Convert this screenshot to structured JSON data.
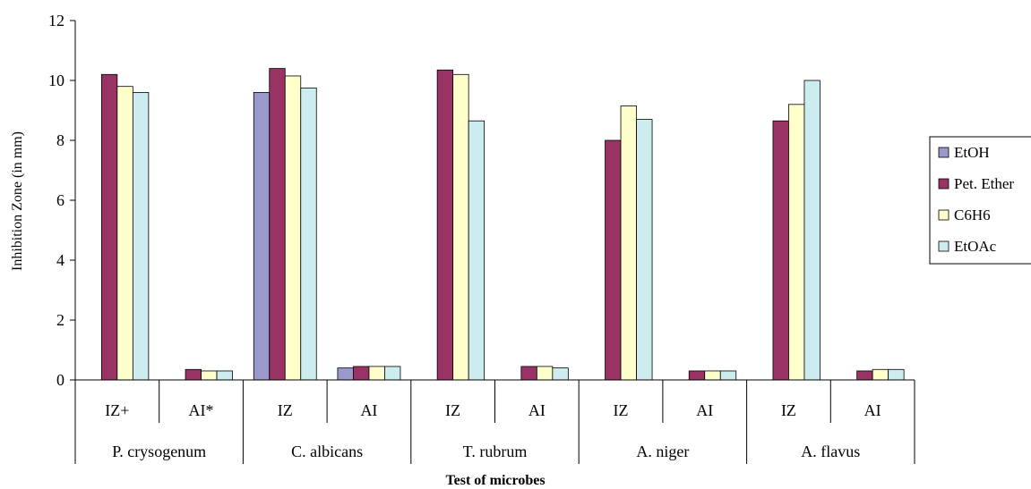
{
  "chart_data": {
    "type": "bar",
    "title": "",
    "xlabel": "Test of microbes",
    "ylabel": "Inhibition Zone (in mm)",
    "ylim": [
      0,
      12
    ],
    "yticks": [
      "0",
      "2",
      "4",
      "6",
      "8",
      "10",
      "12"
    ],
    "grid": false,
    "legend_position": "right",
    "groups": [
      "P. crysogenum",
      "C. albicans",
      "T. rubrum",
      "A. niger",
      "A. flavus"
    ],
    "categories": [
      "IZ+",
      "AI*",
      "IZ",
      "AI",
      "IZ",
      "AI",
      "IZ",
      "AI",
      "IZ",
      "AI"
    ],
    "series": [
      {
        "name": "EtOH",
        "color": "#9999CC",
        "values": [
          0,
          0,
          9.6,
          0.4,
          0,
          0,
          0,
          0,
          0,
          0
        ]
      },
      {
        "name": "Pet. Ether",
        "color": "#993366",
        "values": [
          10.2,
          0.35,
          10.4,
          0.45,
          10.35,
          0.45,
          8.0,
          0.3,
          8.65,
          0.3
        ]
      },
      {
        "name": "C6H6",
        "color": "#FFFFCC",
        "values": [
          9.8,
          0.3,
          10.15,
          0.45,
          10.2,
          0.45,
          9.15,
          0.3,
          9.2,
          0.35
        ]
      },
      {
        "name": "EtOAc",
        "color": "#CCECF0",
        "values": [
          9.6,
          0.3,
          9.75,
          0.45,
          8.65,
          0.4,
          8.7,
          0.3,
          10.0,
          0.35
        ]
      }
    ]
  }
}
